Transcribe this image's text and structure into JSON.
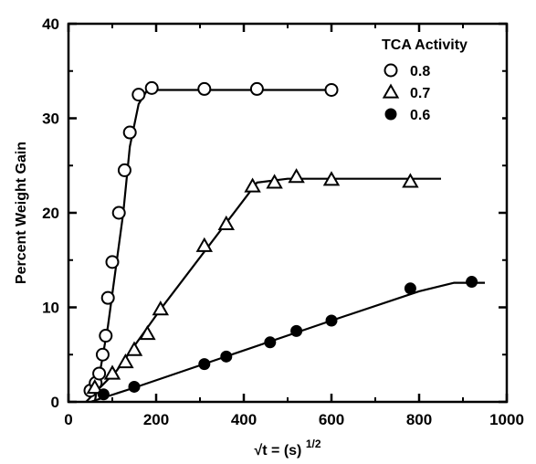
{
  "chart_data": {
    "type": "scatter",
    "title": "",
    "xlabel": "√t = (s)^1/2",
    "xlabel_base": "√t = (s)",
    "xlabel_exp": "1/2",
    "ylabel": "Percent Weight Gain",
    "xlim": [
      0,
      1000
    ],
    "ylim": [
      0,
      40
    ],
    "xticks": [
      0,
      200,
      400,
      600,
      800,
      1000
    ],
    "xtick_labels": [
      "0",
      "200",
      "400",
      "600",
      "800",
      "1000"
    ],
    "yticks": [
      0,
      10,
      20,
      30,
      40
    ],
    "ytick_labels": [
      "0",
      "10",
      "20",
      "30",
      "40"
    ],
    "legend": {
      "title": "TCA Activity",
      "placement": "top-right"
    },
    "grid": false,
    "series": [
      {
        "name": "0.8",
        "marker": "open-circle",
        "points": [
          [
            50,
            1.2
          ],
          [
            62,
            2.0
          ],
          [
            70,
            3.0
          ],
          [
            78,
            5.0
          ],
          [
            85,
            7.0
          ],
          [
            90,
            11.0
          ],
          [
            100,
            14.8
          ],
          [
            115,
            20.0
          ],
          [
            128,
            24.5
          ],
          [
            140,
            28.5
          ],
          [
            160,
            32.5
          ],
          [
            190,
            33.2
          ],
          [
            310,
            33.1
          ],
          [
            430,
            33.1
          ],
          [
            600,
            33.0
          ]
        ],
        "fit_line": [
          [
            60,
            0
          ],
          [
            90,
            8
          ],
          [
            125,
            20
          ],
          [
            140,
            27
          ],
          [
            160,
            31.5
          ],
          [
            180,
            33
          ],
          [
            600,
            33
          ]
        ]
      },
      {
        "name": "0.7",
        "marker": "open-triangle",
        "points": [
          [
            60,
            1.5
          ],
          [
            100,
            3.0
          ],
          [
            130,
            4.2
          ],
          [
            150,
            5.5
          ],
          [
            180,
            7.2
          ],
          [
            210,
            9.8
          ],
          [
            310,
            16.5
          ],
          [
            360,
            18.8
          ],
          [
            420,
            22.8
          ],
          [
            470,
            23.2
          ],
          [
            520,
            23.8
          ],
          [
            600,
            23.5
          ],
          [
            780,
            23.3
          ]
        ],
        "fit_line": [
          [
            40,
            0
          ],
          [
            110,
            3.3
          ],
          [
            210,
            9.8
          ],
          [
            430,
            23.2
          ],
          [
            500,
            23.6
          ],
          [
            850,
            23.6
          ]
        ]
      },
      {
        "name": "0.6",
        "marker": "filled-circle",
        "points": [
          [
            80,
            0.8
          ],
          [
            150,
            1.6
          ],
          [
            310,
            4.0
          ],
          [
            360,
            4.8
          ],
          [
            460,
            6.3
          ],
          [
            520,
            7.5
          ],
          [
            600,
            8.6
          ],
          [
            780,
            12.0
          ],
          [
            920,
            12.7
          ]
        ],
        "fit_line": [
          [
            50,
            0
          ],
          [
            150,
            1.5
          ],
          [
            600,
            8.6
          ],
          [
            800,
            11.7
          ],
          [
            880,
            12.6
          ],
          [
            950,
            12.6
          ]
        ]
      }
    ]
  }
}
